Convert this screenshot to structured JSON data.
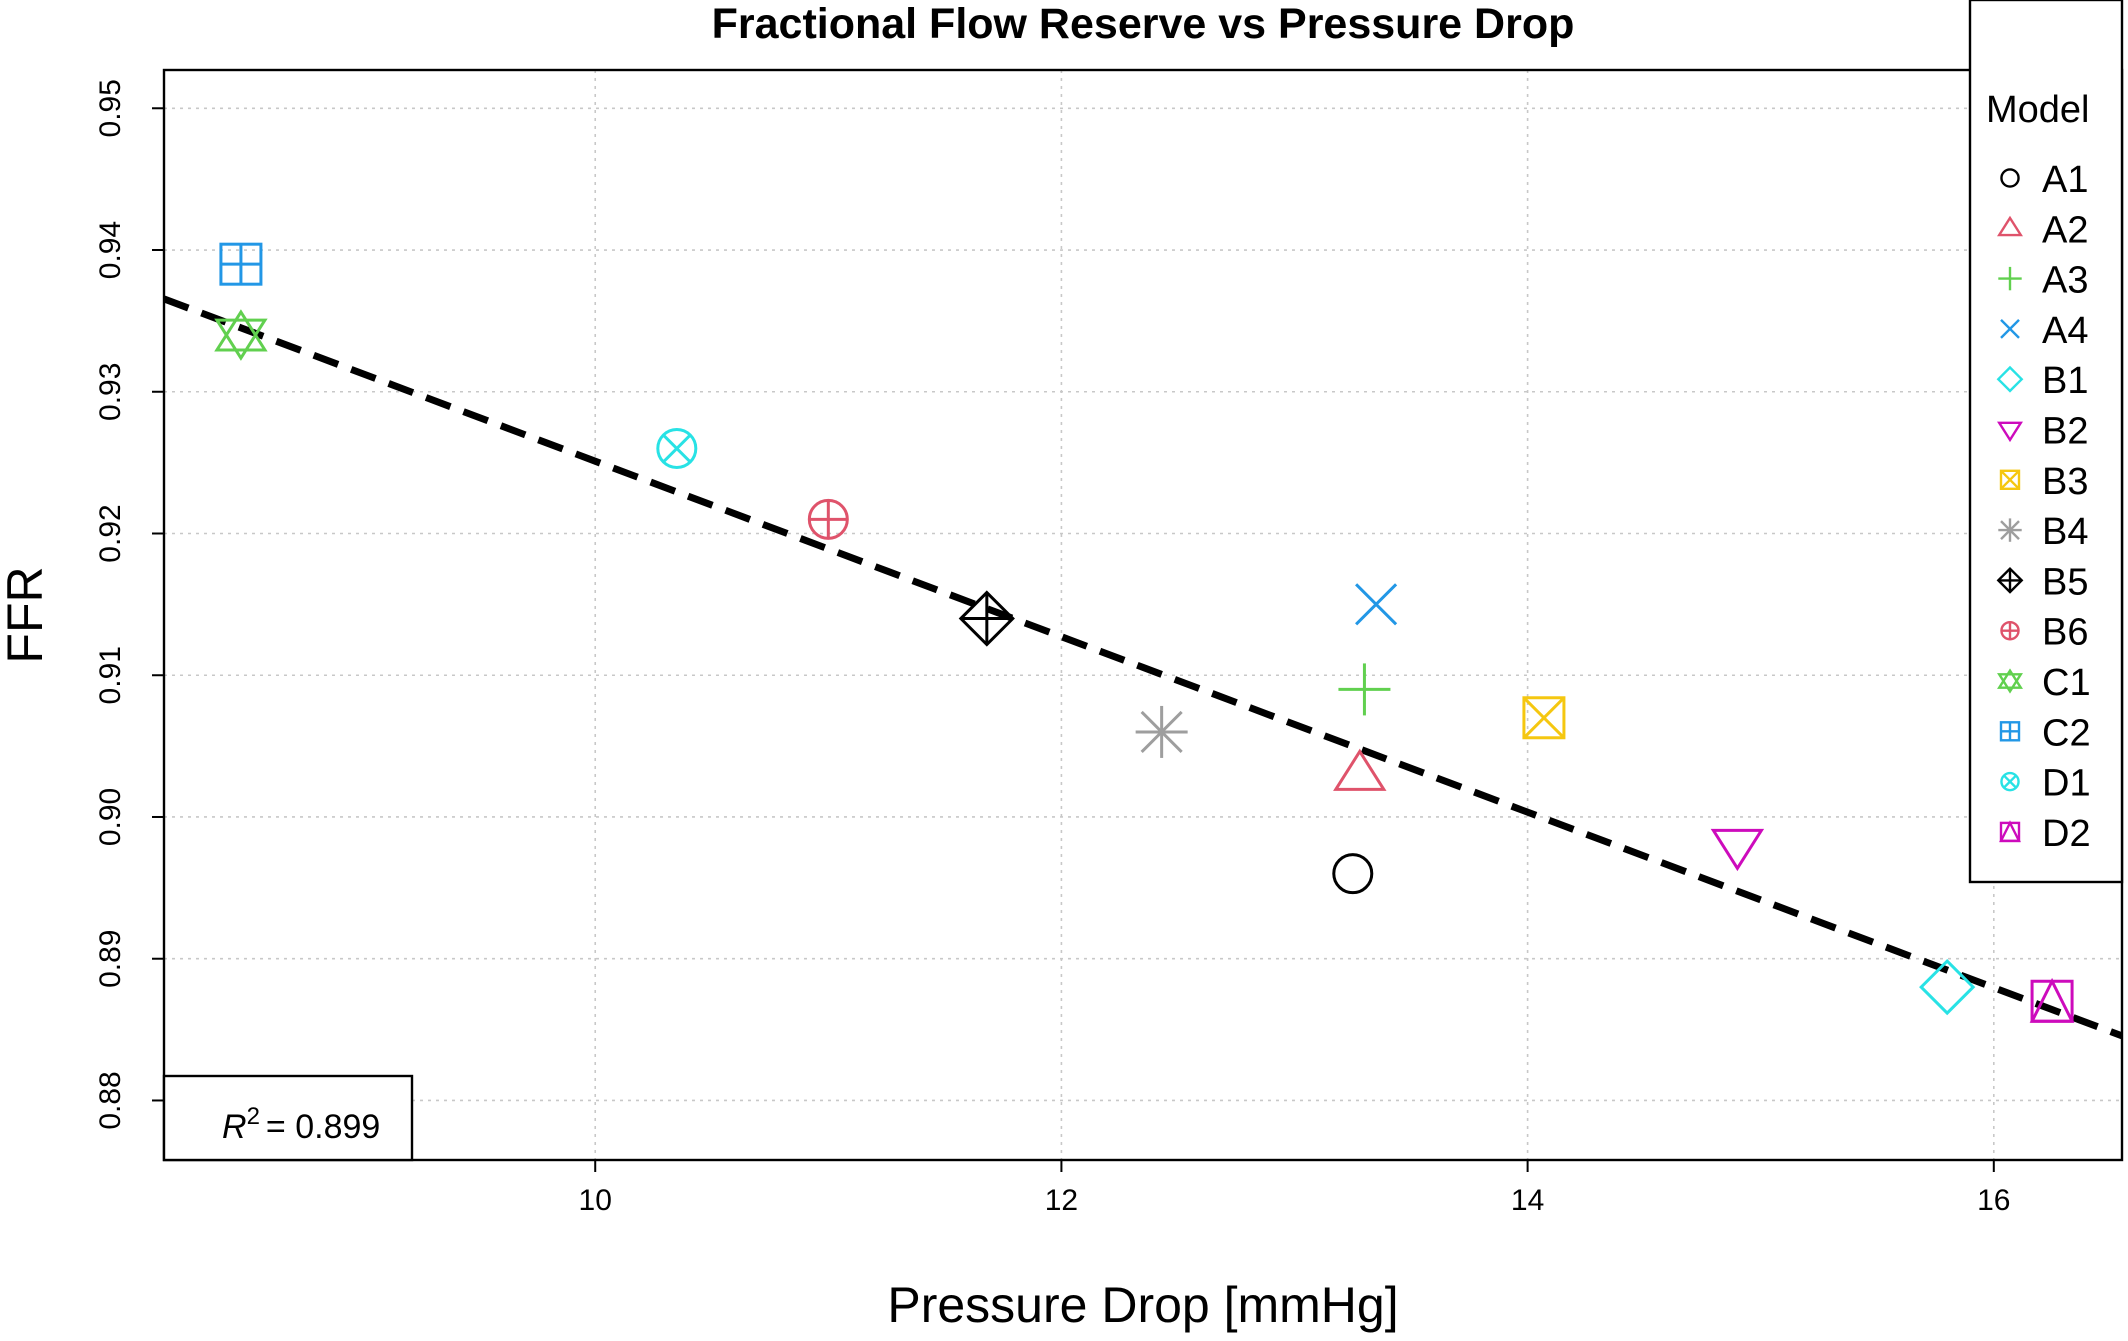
{
  "chart_data": {
    "type": "scatter",
    "title": "Fractional Flow Reserve vs Pressure Drop",
    "xlabel": "Pressure Drop [mmHg]",
    "ylabel": "FFR",
    "xlim": [
      8.15,
      16.55
    ],
    "ylim": [
      0.8758,
      0.9527
    ],
    "xticks": [
      10,
      12,
      14,
      16
    ],
    "yticks": [
      0.88,
      0.89,
      0.9,
      0.91,
      0.92,
      0.93,
      0.94,
      0.95
    ],
    "xtick_labels": [
      "10",
      "12",
      "14",
      "16"
    ],
    "ytick_labels": [
      "0.88",
      "0.89",
      "0.90",
      "0.91",
      "0.92",
      "0.93",
      "0.94",
      "0.95"
    ],
    "grid": true,
    "legend": {
      "title": "Model",
      "placement": "top-right"
    },
    "series": [
      {
        "name": "A1",
        "marker": "circle",
        "color": "#000000",
        "x": 13.25,
        "y": 0.896
      },
      {
        "name": "A2",
        "marker": "triangle-up",
        "color": "#DF536B",
        "x": 13.28,
        "y": 0.903
      },
      {
        "name": "A3",
        "marker": "plus",
        "color": "#61D04F",
        "x": 13.3,
        "y": 0.909
      },
      {
        "name": "A4",
        "marker": "cross",
        "color": "#2297E6",
        "x": 13.35,
        "y": 0.915
      },
      {
        "name": "B1",
        "marker": "diamond",
        "color": "#28E2E5",
        "x": 15.8,
        "y": 0.888
      },
      {
        "name": "B2",
        "marker": "triangle-down",
        "color": "#CD0BBC",
        "x": 14.9,
        "y": 0.898
      },
      {
        "name": "B3",
        "marker": "square-cross",
        "color": "#F5C710",
        "x": 14.07,
        "y": 0.907
      },
      {
        "name": "B4",
        "marker": "asterisk",
        "color": "#9E9E9E",
        "x": 12.43,
        "y": 0.906
      },
      {
        "name": "B5",
        "marker": "diamond-plus",
        "color": "#000000",
        "x": 11.68,
        "y": 0.914
      },
      {
        "name": "B6",
        "marker": "circle-plus",
        "color": "#DF536B",
        "x": 11.0,
        "y": 0.921
      },
      {
        "name": "C1",
        "marker": "star-of-david",
        "color": "#61D04F",
        "x": 8.48,
        "y": 0.934
      },
      {
        "name": "C2",
        "marker": "square-plus",
        "color": "#2297E6",
        "x": 8.48,
        "y": 0.939
      },
      {
        "name": "D1",
        "marker": "circle-cross",
        "color": "#28E2E5",
        "x": 10.35,
        "y": 0.926
      },
      {
        "name": "D2",
        "marker": "square-triangle",
        "color": "#CD0BBC",
        "x": 16.25,
        "y": 0.887
      }
    ],
    "fit_line": {
      "type": "linear",
      "style": "dashed",
      "color": "#000000",
      "intercept": 0.987,
      "slope": -0.00619
    },
    "annotation": {
      "r2_label": "R",
      "r2_exponent": "2",
      "r2_value": "= 0.899"
    }
  }
}
